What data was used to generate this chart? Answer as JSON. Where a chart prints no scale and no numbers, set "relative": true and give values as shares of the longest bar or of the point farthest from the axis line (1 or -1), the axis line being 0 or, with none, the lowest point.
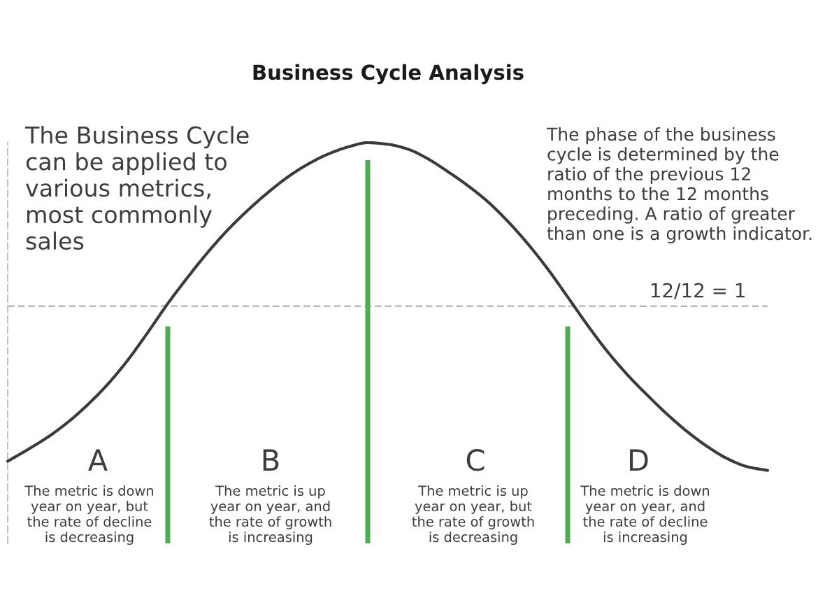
{
  "chart_data": [
    {
      "type": "line",
      "title": "Business Cycle Analysis",
      "relative": true,
      "annotations": [
        "The Business Cycle\ncan be applied to\nvarious metrics,\nmost commonly\nsales",
        "The phase of the business\ncycle is determined by the\nratio of the previous 12\nmonths to the 12 months\npreceding. A ratio of greater\nthan one is a growth indicator.",
        "A",
        "B",
        "C",
        "D",
        "The metric is down\nyear on year, but\nthe rate of decline\nis decreasing",
        "The metric is up\nyear on year, and\nthe rate of growth\nis increasing",
        "The metric is up\nyear on year, but\nthe rate of growth\nis decreasing",
        "The metric is down\nyear on year, and\nthe rate of decline\nis increasing"
      ],
      "categories": [
        null,
        null,
        null,
        null,
        null,
        null,
        null,
        null,
        null,
        null,
        null,
        null,
        null,
        null,
        null,
        null,
        null,
        null,
        null,
        null,
        null,
        null,
        null,
        null,
        null,
        null,
        null,
        null,
        null,
        null,
        null,
        null,
        null,
        null,
        null,
        null,
        null,
        null,
        null
      ],
      "series": [
        {
          "color": "#3b3b3b",
          "values": [
            0.205,
            0.234,
            0.265,
            0.302,
            0.346,
            0.397,
            0.457,
            0.526,
            0.598,
            0.664,
            0.726,
            0.782,
            0.831,
            0.875,
            0.914,
            0.946,
            0.971,
            0.989,
            1.0,
            0.996,
            0.984,
            0.96,
            0.928,
            0.893,
            0.853,
            0.804,
            0.748,
            0.685,
            0.615,
            0.544,
            0.478,
            0.42,
            0.369,
            0.321,
            0.278,
            0.241,
            0.211,
            0.191,
            0.182
          ]
        }
      ],
      "ref_lines": [
        {
          "axis": "y",
          "value": 0.592,
          "label": "12/12 = 1",
          "color": "#aaaaaa",
          "line_style": "dashed"
        }
      ]
    },
    {
      "type": "bar",
      "relative": true,
      "categories": [
        null,
        null,
        null
      ],
      "values": [
        0.566,
        1.0,
        0.566
      ],
      "color": "#4cae4f"
    }
  ]
}
